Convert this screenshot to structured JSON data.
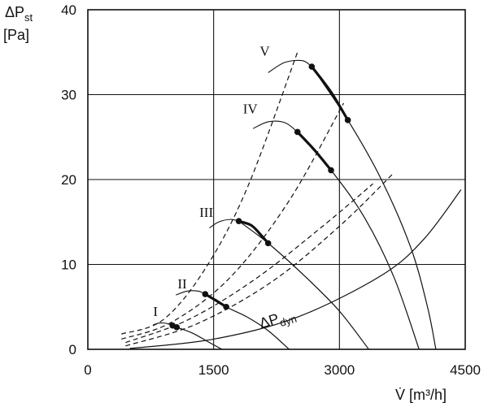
{
  "chart_data": {
    "type": "line",
    "title": "",
    "xlabel_main": "V̇",
    "xlabel_unit": "[m³/h]",
    "ylabel_main": "ΔP",
    "ylabel_sub": "st",
    "ylabel_unit": "[Pa]",
    "xlim": [
      0,
      4500
    ],
    "ylim": [
      0,
      40
    ],
    "x_ticks": [
      0,
      1500,
      3000,
      4500
    ],
    "y_ticks": [
      0,
      10,
      20,
      30,
      40
    ],
    "x_tick_labels": [
      "0",
      "1500",
      "3000",
      "4500"
    ],
    "y_tick_labels": [
      "0",
      "10",
      "20",
      "30",
      "40"
    ],
    "grid": true,
    "fan_curves": [
      {
        "name": "I",
        "label_at": [
          780,
          3.9
        ],
        "points": [
          [
            980,
            2.9
          ],
          [
            1060,
            2.6
          ],
          [
            1250,
            1.9
          ],
          [
            1450,
            0.8
          ],
          [
            1600,
            0
          ]
        ],
        "operating_segment": [
          [
            1010,
            2.8
          ],
          [
            1060,
            2.6
          ]
        ],
        "operating_points": [
          [
            1010,
            2.8
          ],
          [
            1060,
            2.6
          ]
        ],
        "stall_arc": [
          [
            780,
            2.9
          ],
          [
            860,
            3.1
          ],
          [
            940,
            3.05
          ],
          [
            1010,
            2.8
          ]
        ]
      },
      {
        "name": "II",
        "label_at": [
          1070,
          7.2
        ],
        "points": [
          [
            1400,
            6.5
          ],
          [
            1650,
            5.0
          ],
          [
            1900,
            3.8
          ],
          [
            2150,
            2.2
          ],
          [
            2400,
            0
          ]
        ],
        "operating_segment": [
          [
            1400,
            6.5
          ],
          [
            1520,
            5.8
          ],
          [
            1650,
            5.0
          ]
        ],
        "operating_points": [
          [
            1400,
            6.5
          ],
          [
            1650,
            5.0
          ]
        ],
        "stall_arc": [
          [
            1050,
            6.4
          ],
          [
            1180,
            6.85
          ],
          [
            1320,
            6.85
          ],
          [
            1400,
            6.5
          ]
        ]
      },
      {
        "name": "III",
        "label_at": [
          1330,
          15.6
        ],
        "points": [
          [
            1800,
            15.1
          ],
          [
            2150,
            12.5
          ],
          [
            2600,
            8.5
          ],
          [
            3000,
            4.5
          ],
          [
            3350,
            0
          ]
        ],
        "operating_segment": [
          [
            1800,
            15.1
          ],
          [
            1950,
            14.6
          ],
          [
            2070,
            13.4
          ],
          [
            2150,
            12.5
          ]
        ],
        "operating_points": [
          [
            1800,
            15.1
          ],
          [
            2150,
            12.5
          ]
        ],
        "stall_arc": [
          [
            1450,
            14.3
          ],
          [
            1560,
            15.0
          ],
          [
            1700,
            15.3
          ],
          [
            1800,
            15.1
          ]
        ]
      },
      {
        "name": "IV",
        "label_at": [
          1850,
          27.8
        ],
        "points": [
          [
            2500,
            25.6
          ],
          [
            2900,
            21.1
          ],
          [
            3300,
            15.5
          ],
          [
            3650,
            8.5
          ],
          [
            3950,
            0
          ]
        ],
        "operating_segment": [
          [
            2500,
            25.6
          ],
          [
            2700,
            23.5
          ],
          [
            2900,
            21.1
          ]
        ],
        "operating_points": [
          [
            2500,
            25.6
          ],
          [
            2900,
            21.1
          ]
        ],
        "stall_arc": [
          [
            1970,
            26.0
          ],
          [
            2150,
            26.8
          ],
          [
            2350,
            26.7
          ],
          [
            2500,
            25.6
          ]
        ]
      },
      {
        "name": "V",
        "label_at": [
          2050,
          34.6
        ],
        "points": [
          [
            2670,
            33.3
          ],
          [
            3100,
            27.0
          ],
          [
            3500,
            20.0
          ],
          [
            3850,
            12.0
          ],
          [
            4050,
            5.0
          ],
          [
            4150,
            0
          ]
        ],
        "operating_segment": [
          [
            2670,
            33.3
          ],
          [
            2900,
            30.3
          ],
          [
            3100,
            27.0
          ]
        ],
        "operating_points": [
          [
            2670,
            33.3
          ],
          [
            3100,
            27.0
          ]
        ],
        "stall_arc": [
          [
            2150,
            32.6
          ],
          [
            2350,
            33.8
          ],
          [
            2560,
            34.0
          ],
          [
            2670,
            33.3
          ]
        ]
      }
    ],
    "system_curves_dashed": [
      {
        "points": [
          [
            400,
            1.8
          ],
          [
            900,
            3.5
          ],
          [
            1400,
            9.5
          ],
          [
            1900,
            19.0
          ],
          [
            2500,
            35.0
          ]
        ]
      },
      {
        "points": [
          [
            400,
            1.2
          ],
          [
            1000,
            3.2
          ],
          [
            1700,
            8.5
          ],
          [
            2400,
            17.5
          ],
          [
            3050,
            29.0
          ]
        ]
      },
      {
        "points": [
          [
            450,
            0.8
          ],
          [
            1200,
            3.5
          ],
          [
            2000,
            8.3
          ],
          [
            2800,
            14.5
          ],
          [
            3400,
            19.5
          ]
        ]
      },
      {
        "points": [
          [
            450,
            0.4
          ],
          [
            1300,
            3.0
          ],
          [
            2200,
            8.0
          ],
          [
            3000,
            14.5
          ],
          [
            3650,
            20.8
          ]
        ]
      }
    ],
    "dynamic_pressure_curve": {
      "label_main": "ΔP",
      "label_sub": "dyn",
      "label_at": [
        2050,
        3.0
      ],
      "points": [
        [
          500,
          0.1
        ],
        [
          1500,
          1.2
        ],
        [
          2500,
          3.8
        ],
        [
          3500,
          8.7
        ],
        [
          4000,
          12.9
        ],
        [
          4450,
          18.8
        ]
      ]
    }
  }
}
